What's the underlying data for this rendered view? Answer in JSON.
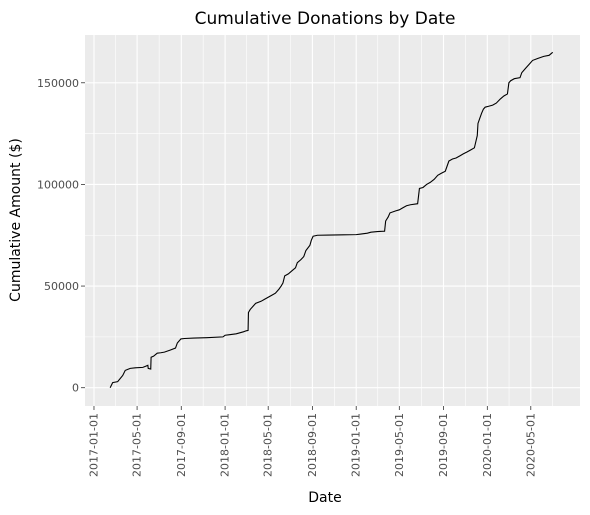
{
  "chart_data": {
    "type": "line",
    "title": "Cumulative Donations by Date",
    "xlabel": "Date",
    "ylabel": "Cumulative Amount ($)",
    "x_ticks": [
      "2017-01-01",
      "2017-05-01",
      "2017-09-01",
      "2018-01-01",
      "2018-05-01",
      "2018-09-01",
      "2019-01-01",
      "2019-05-01",
      "2019-09-01",
      "2020-01-01",
      "2020-05-01"
    ],
    "y_ticks": [
      0,
      50000,
      100000,
      150000
    ],
    "y_tick_labels": [
      "0",
      "50000",
      "100000",
      "150000"
    ],
    "xlim": [
      "2016-12-07",
      "2020-09-15"
    ],
    "ylim": [
      -9000,
      173500
    ],
    "grid": true,
    "legend": "none",
    "line_color": "#000000",
    "panel_color": "#ebebeb",
    "grid_color": "#ffffff",
    "series": [
      {
        "points": [
          [
            "2017-02-15",
            0
          ],
          [
            "2017-02-22",
            2500
          ],
          [
            "2017-03-08",
            3000
          ],
          [
            "2017-03-22",
            6000
          ],
          [
            "2017-03-29",
            8500
          ],
          [
            "2017-04-05",
            9000
          ],
          [
            "2017-04-12",
            9500
          ],
          [
            "2017-04-26",
            9800
          ],
          [
            "2017-05-17",
            10000
          ],
          [
            "2017-05-24",
            10500
          ],
          [
            "2017-05-31",
            11000
          ],
          [
            "2017-06-01",
            9500
          ],
          [
            "2017-06-08",
            9200
          ],
          [
            "2017-06-09",
            15000
          ],
          [
            "2017-06-16",
            15500
          ],
          [
            "2017-06-26",
            17000
          ],
          [
            "2017-07-06",
            17200
          ],
          [
            "2017-07-16",
            17500
          ],
          [
            "2017-08-01",
            18500
          ],
          [
            "2017-08-16",
            19500
          ],
          [
            "2017-08-21",
            22000
          ],
          [
            "2017-08-31",
            24000
          ],
          [
            "2017-09-10",
            24200
          ],
          [
            "2017-10-06",
            24400
          ],
          [
            "2017-11-11",
            24600
          ],
          [
            "2017-12-26",
            25000
          ],
          [
            "2018-01-01",
            25800
          ],
          [
            "2018-01-11",
            26000
          ],
          [
            "2018-02-01",
            26500
          ],
          [
            "2018-02-11",
            27000
          ],
          [
            "2018-02-21",
            27500
          ],
          [
            "2018-03-01",
            28000
          ],
          [
            "2018-03-06",
            28200
          ],
          [
            "2018-03-07",
            37000
          ],
          [
            "2018-03-12",
            38500
          ],
          [
            "2018-03-22",
            40500
          ],
          [
            "2018-03-27",
            41500
          ],
          [
            "2018-04-11",
            42500
          ],
          [
            "2018-04-21",
            43500
          ],
          [
            "2018-05-01",
            44500
          ],
          [
            "2018-05-11",
            45500
          ],
          [
            "2018-05-21",
            46500
          ],
          [
            "2018-05-31",
            48500
          ],
          [
            "2018-06-06",
            50000
          ],
          [
            "2018-06-11",
            51500
          ],
          [
            "2018-06-16",
            55000
          ],
          [
            "2018-06-26",
            56000
          ],
          [
            "2018-07-06",
            57500
          ],
          [
            "2018-07-16",
            59000
          ],
          [
            "2018-07-21",
            61500
          ],
          [
            "2018-07-31",
            63000
          ],
          [
            "2018-08-08",
            64500
          ],
          [
            "2018-08-14",
            67500
          ],
          [
            "2018-08-25",
            70000
          ],
          [
            "2018-08-29",
            72500
          ],
          [
            "2018-09-03",
            74500
          ],
          [
            "2018-09-15",
            75000
          ],
          [
            "2018-10-16",
            75100
          ],
          [
            "2018-11-26",
            75200
          ],
          [
            "2019-01-01",
            75300
          ],
          [
            "2019-01-11",
            75500
          ],
          [
            "2019-02-01",
            76000
          ],
          [
            "2019-02-11",
            76500
          ],
          [
            "2019-03-01",
            76800
          ],
          [
            "2019-03-21",
            77000
          ],
          [
            "2019-03-24",
            82000
          ],
          [
            "2019-03-31",
            84000
          ],
          [
            "2019-04-05",
            86000
          ],
          [
            "2019-04-21",
            87000
          ],
          [
            "2019-05-01",
            87500
          ],
          [
            "2019-05-11",
            88500
          ],
          [
            "2019-05-21",
            89500
          ],
          [
            "2019-06-01",
            90000
          ],
          [
            "2019-06-21",
            90500
          ],
          [
            "2019-06-26",
            98000
          ],
          [
            "2019-07-06",
            98500
          ],
          [
            "2019-07-16",
            100000
          ],
          [
            "2019-07-26",
            101000
          ],
          [
            "2019-08-06",
            102500
          ],
          [
            "2019-08-16",
            104500
          ],
          [
            "2019-08-26",
            105500
          ],
          [
            "2019-09-06",
            106500
          ],
          [
            "2019-09-16",
            111500
          ],
          [
            "2019-09-26",
            112500
          ],
          [
            "2019-10-06",
            113000
          ],
          [
            "2019-10-16",
            114000
          ],
          [
            "2019-10-26",
            115000
          ],
          [
            "2019-11-06",
            116000
          ],
          [
            "2019-11-16",
            117000
          ],
          [
            "2019-11-26",
            118000
          ],
          [
            "2019-12-02",
            122500
          ],
          [
            "2019-12-04",
            124000
          ],
          [
            "2019-12-06",
            130000
          ],
          [
            "2019-12-11",
            132500
          ],
          [
            "2019-12-16",
            135000
          ],
          [
            "2019-12-21",
            137000
          ],
          [
            "2019-12-26",
            138000
          ],
          [
            "2020-01-06",
            138500
          ],
          [
            "2020-01-16",
            139000
          ],
          [
            "2020-01-26",
            140000
          ],
          [
            "2020-02-06",
            142000
          ],
          [
            "2020-02-16",
            143500
          ],
          [
            "2020-02-26",
            144500
          ],
          [
            "2020-03-01",
            150000
          ],
          [
            "2020-03-06",
            151000
          ],
          [
            "2020-03-16",
            152000
          ],
          [
            "2020-04-01",
            152500
          ],
          [
            "2020-04-06",
            155000
          ],
          [
            "2020-04-16",
            157000
          ],
          [
            "2020-04-26",
            159000
          ],
          [
            "2020-05-06",
            161000
          ],
          [
            "2020-05-21",
            162000
          ],
          [
            "2020-06-06",
            163000
          ],
          [
            "2020-06-21",
            163500
          ],
          [
            "2020-07-01",
            165000
          ]
        ]
      }
    ]
  }
}
